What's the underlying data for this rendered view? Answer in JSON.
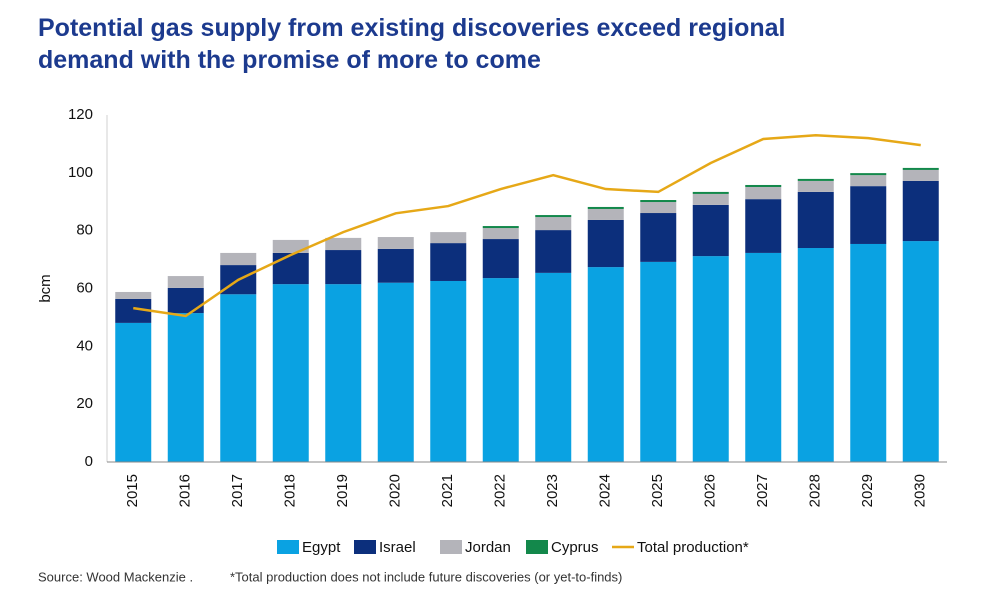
{
  "chart_data": {
    "type": "bar",
    "stacked": true,
    "title": "Potential gas supply from existing discoveries exceed regional demand with the promise of more to come",
    "y_label": "bcm",
    "source": "Source: Wood Mackenzie .",
    "note": "*Total production does not include future discoveries (or yet-to-finds)",
    "categories": [
      "2015",
      "2016",
      "2017",
      "2018",
      "2019",
      "2020",
      "2021",
      "2022",
      "2023",
      "2024",
      "2025",
      "2026",
      "2027",
      "2028",
      "2029",
      "2030"
    ],
    "ylim": [
      0,
      120
    ],
    "yticks": [
      0,
      20,
      40,
      60,
      80,
      100,
      120
    ],
    "grid": false,
    "series": [
      {
        "name": "Egypt",
        "color": "#0aa2e2",
        "values": [
          48.1,
          51.5,
          58,
          61.5,
          61.5,
          62,
          62.6,
          63.6,
          65.4,
          67.4,
          69.2,
          71.2,
          72.3,
          74,
          75.4,
          76.4
        ]
      },
      {
        "name": "Israel",
        "color": "#0c2f7c",
        "values": [
          8.3,
          8.7,
          10.1,
          10.8,
          11.8,
          11.7,
          13.1,
          13.5,
          14.8,
          16.3,
          16.9,
          17.7,
          18.6,
          19.4,
          20,
          20.8
        ]
      },
      {
        "name": "Jordan",
        "color": "#b4b4ba",
        "values": [
          2.4,
          4.1,
          4.2,
          4.5,
          4.2,
          4.1,
          3.8,
          3.8,
          4.5,
          3.8,
          3.8,
          3.8,
          4.2,
          3.8,
          3.8,
          3.8
        ]
      },
      {
        "name": "Cyprus",
        "color": "#13884b",
        "values": [
          0,
          0,
          0,
          0,
          0,
          0,
          0,
          0.7,
          0.7,
          0.7,
          0.7,
          0.7,
          0.7,
          0.7,
          0.7,
          0.7
        ]
      },
      {
        "name": "Total production*",
        "type": "line",
        "color": "#e6a817",
        "values": [
          53.2,
          50.5,
          63,
          71.6,
          79.5,
          86,
          88.5,
          94.4,
          99.2,
          94.4,
          93.4,
          103.4,
          111.7,
          113,
          112,
          109.6
        ]
      }
    ]
  }
}
